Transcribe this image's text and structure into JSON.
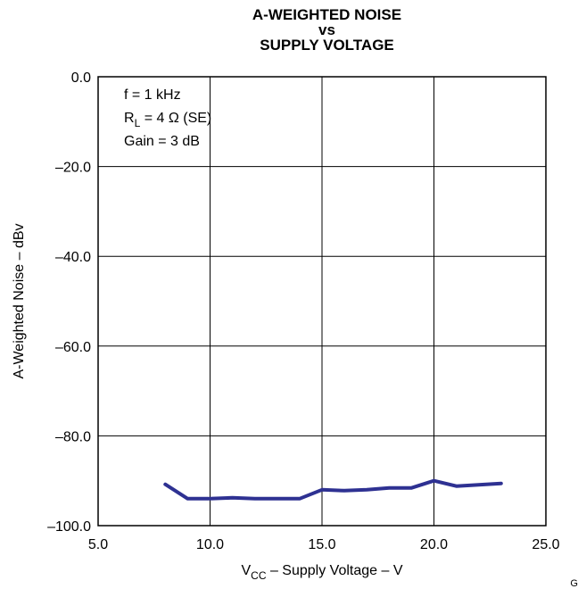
{
  "chart_data": {
    "type": "line",
    "title": [
      "A-WEIGHTED NOISE",
      "vs",
      "SUPPLY VOLTAGE"
    ],
    "xlabel": {
      "main": "V",
      "sub": "CC",
      "rest": " – Supply Voltage – V"
    },
    "ylabel": "A-Weighted Noise – dBv",
    "xlim": [
      5.0,
      25.0
    ],
    "ylim": [
      -100.0,
      0.0
    ],
    "xticks": [
      5.0,
      10.0,
      15.0,
      20.0,
      25.0
    ],
    "xtick_labels": [
      "5.0",
      "10.0",
      "15.0",
      "20.0",
      "25.0"
    ],
    "yticks": [
      0.0,
      -20.0,
      -40.0,
      -60.0,
      -80.0,
      -100.0
    ],
    "ytick_labels": [
      "0.0",
      "–20.0",
      "–40.0",
      "–60.0",
      "–80.0",
      "–100.0"
    ],
    "grid": true,
    "annotations": [
      {
        "text": "f = 1 kHz"
      },
      {
        "main": "R",
        "sub": "L",
        "rest": " = 4 Ω (SE)"
      },
      {
        "text": "Gain = 3 dB"
      }
    ],
    "series": [
      {
        "color": "#2e3192",
        "x": [
          8,
          9,
          10,
          11,
          12,
          13,
          14,
          15,
          16,
          17,
          18,
          19,
          20,
          21,
          22,
          23
        ],
        "y": [
          -90.8,
          -94.0,
          -94.0,
          -93.8,
          -94.0,
          -94.0,
          -94.0,
          -92.0,
          -92.2,
          -92.0,
          -91.6,
          -91.6,
          -90.0,
          -91.2,
          -90.9,
          -90.6
        ]
      }
    ]
  },
  "figure_id": "G0"
}
